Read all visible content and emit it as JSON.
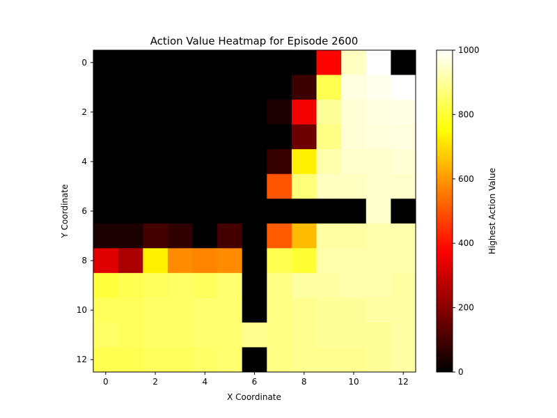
{
  "chart_data": {
    "type": "heatmap",
    "title": "Action Value Heatmap for Episode 2600",
    "xlabel": "X Coordinate",
    "ylabel": "Y Coordinate",
    "colorbar_label": "Highest Action Value",
    "colormap": "hot",
    "vmin": 0,
    "vmax": 1000,
    "x_ticks": [
      "0",
      "2",
      "4",
      "6",
      "8",
      "10",
      "12"
    ],
    "y_ticks": [
      "0",
      "2",
      "4",
      "6",
      "8",
      "10",
      "12"
    ],
    "colorbar_ticks": [
      "0",
      "200",
      "400",
      "600",
      "800",
      "1000"
    ],
    "values": [
      [
        0,
        0,
        0,
        0,
        0,
        0,
        0,
        0,
        0,
        380,
        940,
        1000,
        0
      ],
      [
        0,
        0,
        0,
        0,
        0,
        0,
        0,
        0,
        90,
        830,
        970,
        980,
        1000
      ],
      [
        0,
        0,
        0,
        0,
        0,
        0,
        0,
        40,
        360,
        900,
        960,
        970,
        975
      ],
      [
        0,
        0,
        0,
        0,
        0,
        0,
        0,
        0,
        160,
        880,
        960,
        965,
        970
      ],
      [
        0,
        0,
        0,
        0,
        0,
        0,
        0,
        80,
        730,
        920,
        950,
        950,
        960
      ],
      [
        0,
        0,
        0,
        0,
        0,
        0,
        0,
        500,
        870,
        940,
        940,
        950,
        950
      ],
      [
        0,
        0,
        0,
        0,
        0,
        0,
        0,
        0,
        0,
        0,
        0,
        950,
        0
      ],
      [
        40,
        40,
        100,
        70,
        0,
        100,
        0,
        510,
        650,
        910,
        910,
        920,
        920
      ],
      [
        330,
        250,
        730,
        580,
        570,
        580,
        0,
        830,
        800,
        920,
        920,
        920,
        920
      ],
      [
        810,
        830,
        840,
        850,
        840,
        860,
        0,
        880,
        910,
        910,
        920,
        920,
        910
      ],
      [
        840,
        840,
        850,
        850,
        860,
        860,
        0,
        880,
        890,
        900,
        900,
        910,
        910
      ],
      [
        850,
        840,
        850,
        850,
        860,
        860,
        890,
        880,
        890,
        900,
        900,
        900,
        910
      ],
      [
        830,
        830,
        840,
        840,
        850,
        860,
        0,
        880,
        890,
        890,
        890,
        900,
        910
      ]
    ]
  }
}
